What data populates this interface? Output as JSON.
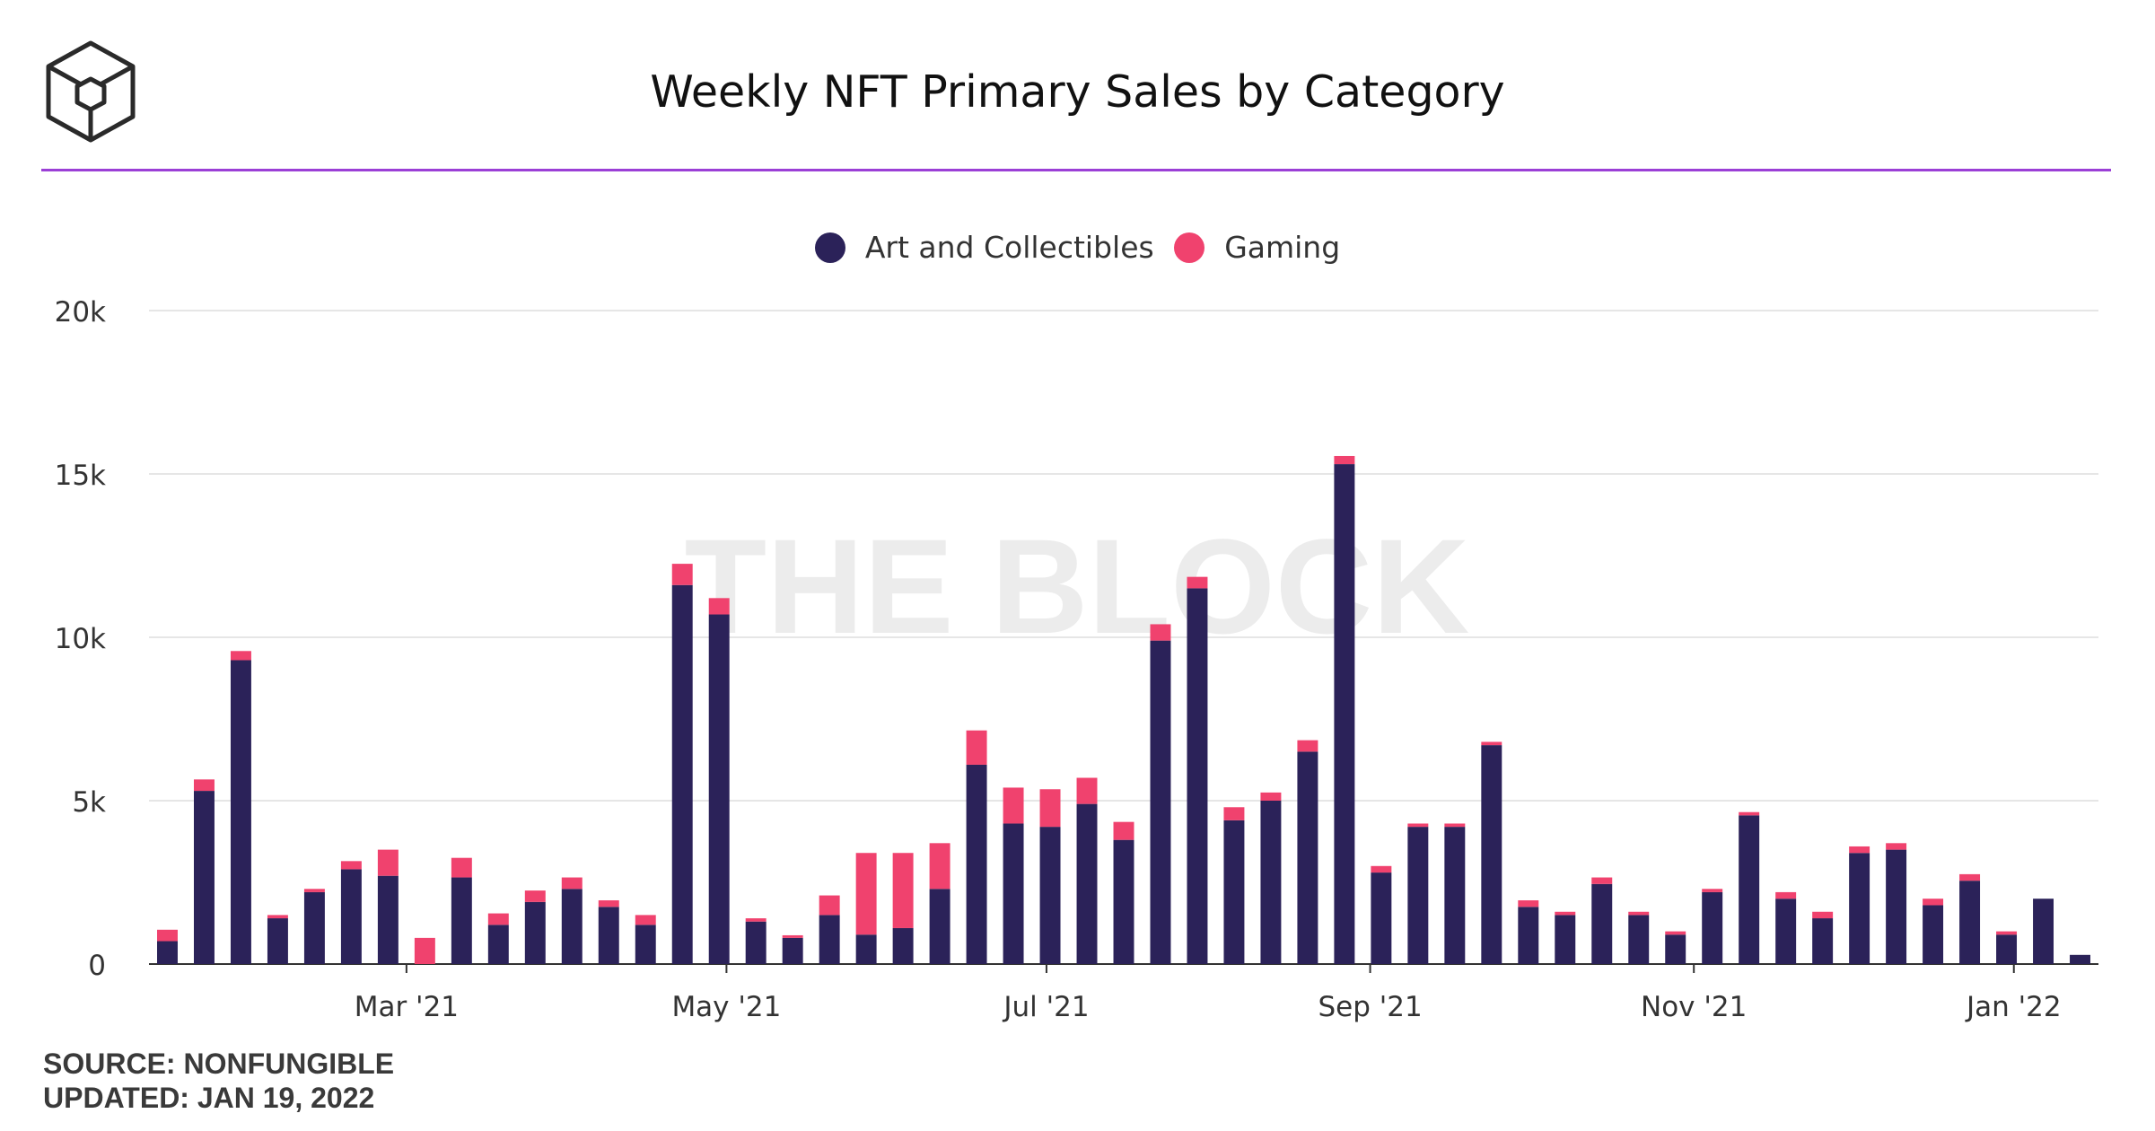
{
  "header": {
    "title": "Weekly NFT Primary Sales by Category",
    "logo_icon": "the-block-cube-icon"
  },
  "watermark": "THE BLOCK",
  "footer": {
    "source": "SOURCE: NONFUNGIBLE",
    "updated": "UPDATED: JAN 19, 2022"
  },
  "colors": {
    "art": "#2b2259",
    "gaming": "#f0426e",
    "accent_rule": "#9b3fd6"
  },
  "chart_data": {
    "type": "bar",
    "stacked": true,
    "title": "Weekly NFT Primary Sales by Category",
    "xlabel": "",
    "ylabel": "",
    "ylim": [
      0,
      20000
    ],
    "yticks": [
      0,
      5000,
      10000,
      15000,
      20000
    ],
    "ytick_labels": [
      "0",
      "5k",
      "10k",
      "15k",
      "20k"
    ],
    "x_tick_labels": [
      {
        "label": "Mar '21",
        "index": 6.5
      },
      {
        "label": "May '21",
        "index": 15.2
      },
      {
        "label": "Jul '21",
        "index": 23.9
      },
      {
        "label": "Sep '21",
        "index": 32.7
      },
      {
        "label": "Nov '21",
        "index": 41.5
      },
      {
        "label": "Jan '22",
        "index": 50.2
      }
    ],
    "grid": true,
    "legend_position": "top-center",
    "series": [
      {
        "name": "Art and Collectibles",
        "color": "#2b2259",
        "values": [
          700,
          5300,
          9300,
          1400,
          2200,
          2900,
          2700,
          0,
          2650,
          1200,
          1900,
          2300,
          1750,
          1200,
          11600,
          10700,
          1300,
          800,
          1500,
          900,
          1100,
          2300,
          6100,
          4300,
          4200,
          4900,
          3800,
          9900,
          11500,
          4400,
          5000,
          6500,
          15300,
          2800,
          4200,
          4200,
          6700,
          1750,
          1500,
          2450,
          1500,
          900,
          2200,
          4550,
          2000,
          1400,
          3400,
          3500,
          1800,
          2550,
          900,
          2000,
          280
        ]
      },
      {
        "name": "Gaming",
        "color": "#f0426e",
        "values": [
          350,
          350,
          280,
          100,
          100,
          250,
          800,
          800,
          600,
          350,
          350,
          350,
          200,
          300,
          650,
          500,
          100,
          80,
          600,
          2500,
          2300,
          1400,
          1050,
          1100,
          1150,
          800,
          550,
          500,
          350,
          400,
          250,
          350,
          250,
          200,
          100,
          100,
          100,
          200,
          100,
          200,
          100,
          100,
          100,
          100,
          200,
          200,
          200,
          200,
          200,
          200,
          100,
          0,
          0
        ]
      }
    ]
  }
}
